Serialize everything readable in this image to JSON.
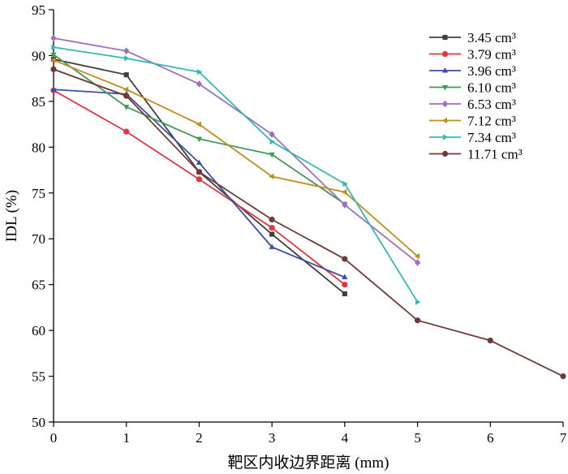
{
  "chart_data": {
    "type": "line",
    "xlabel": "靶区内收边界距离 (mm)",
    "ylabel": "IDL (%)",
    "xlim": [
      0,
      7
    ],
    "ylim": [
      50,
      95
    ],
    "xticks": [
      "0",
      "1",
      "2",
      "3",
      "4",
      "5",
      "6",
      "7"
    ],
    "yticks": [
      "50",
      "55",
      "60",
      "65",
      "70",
      "75",
      "80",
      "85",
      "90",
      "95"
    ],
    "grid": false,
    "legend_position": "top-right",
    "series": [
      {
        "name": "3.45 cm³",
        "color": "#3f3f3f",
        "marker": "square",
        "x": [
          0,
          1,
          2,
          3,
          4
        ],
        "y": [
          89.6,
          87.9,
          77.3,
          70.5,
          64.0
        ]
      },
      {
        "name": "3.79 cm³",
        "color": "#e0363f",
        "marker": "circle",
        "x": [
          0,
          1,
          2,
          3,
          4
        ],
        "y": [
          86.2,
          81.7,
          76.5,
          71.2,
          65.0
        ]
      },
      {
        "name": "3.96 cm³",
        "color": "#3951a3",
        "marker": "triangle-up",
        "x": [
          0,
          1,
          2,
          3,
          4
        ],
        "y": [
          86.3,
          85.8,
          78.3,
          69.1,
          65.8
        ]
      },
      {
        "name": "6.10 cm³",
        "color": "#3f9a55",
        "marker": "triangle-down",
        "x": [
          0,
          1,
          2,
          3,
          4
        ],
        "y": [
          90.1,
          84.4,
          80.9,
          79.2,
          73.8
        ]
      },
      {
        "name": "6.53 cm³",
        "color": "#9b70be",
        "marker": "diamond",
        "x": [
          0,
          1,
          2,
          3,
          4,
          5
        ],
        "y": [
          91.9,
          90.5,
          86.9,
          81.4,
          73.7,
          67.4
        ]
      },
      {
        "name": "7.12 cm³",
        "color": "#c38c1e",
        "marker": "triangle-left",
        "x": [
          0,
          1,
          2,
          3,
          4,
          5
        ],
        "y": [
          89.5,
          86.3,
          82.5,
          76.8,
          75.1,
          68.1
        ]
      },
      {
        "name": "7.34 cm³",
        "color": "#35b9ae",
        "marker": "triangle-right",
        "x": [
          0,
          1,
          2,
          3,
          4,
          5
        ],
        "y": [
          90.9,
          89.7,
          88.2,
          80.6,
          76.0,
          63.1
        ]
      },
      {
        "name": "11.71 cm³",
        "color": "#6e3a36",
        "marker": "circle",
        "x": [
          0,
          1,
          2,
          3,
          4,
          5,
          6,
          7
        ],
        "y": [
          88.5,
          85.6,
          77.3,
          72.1,
          67.8,
          61.1,
          58.9,
          55.0
        ]
      }
    ]
  }
}
